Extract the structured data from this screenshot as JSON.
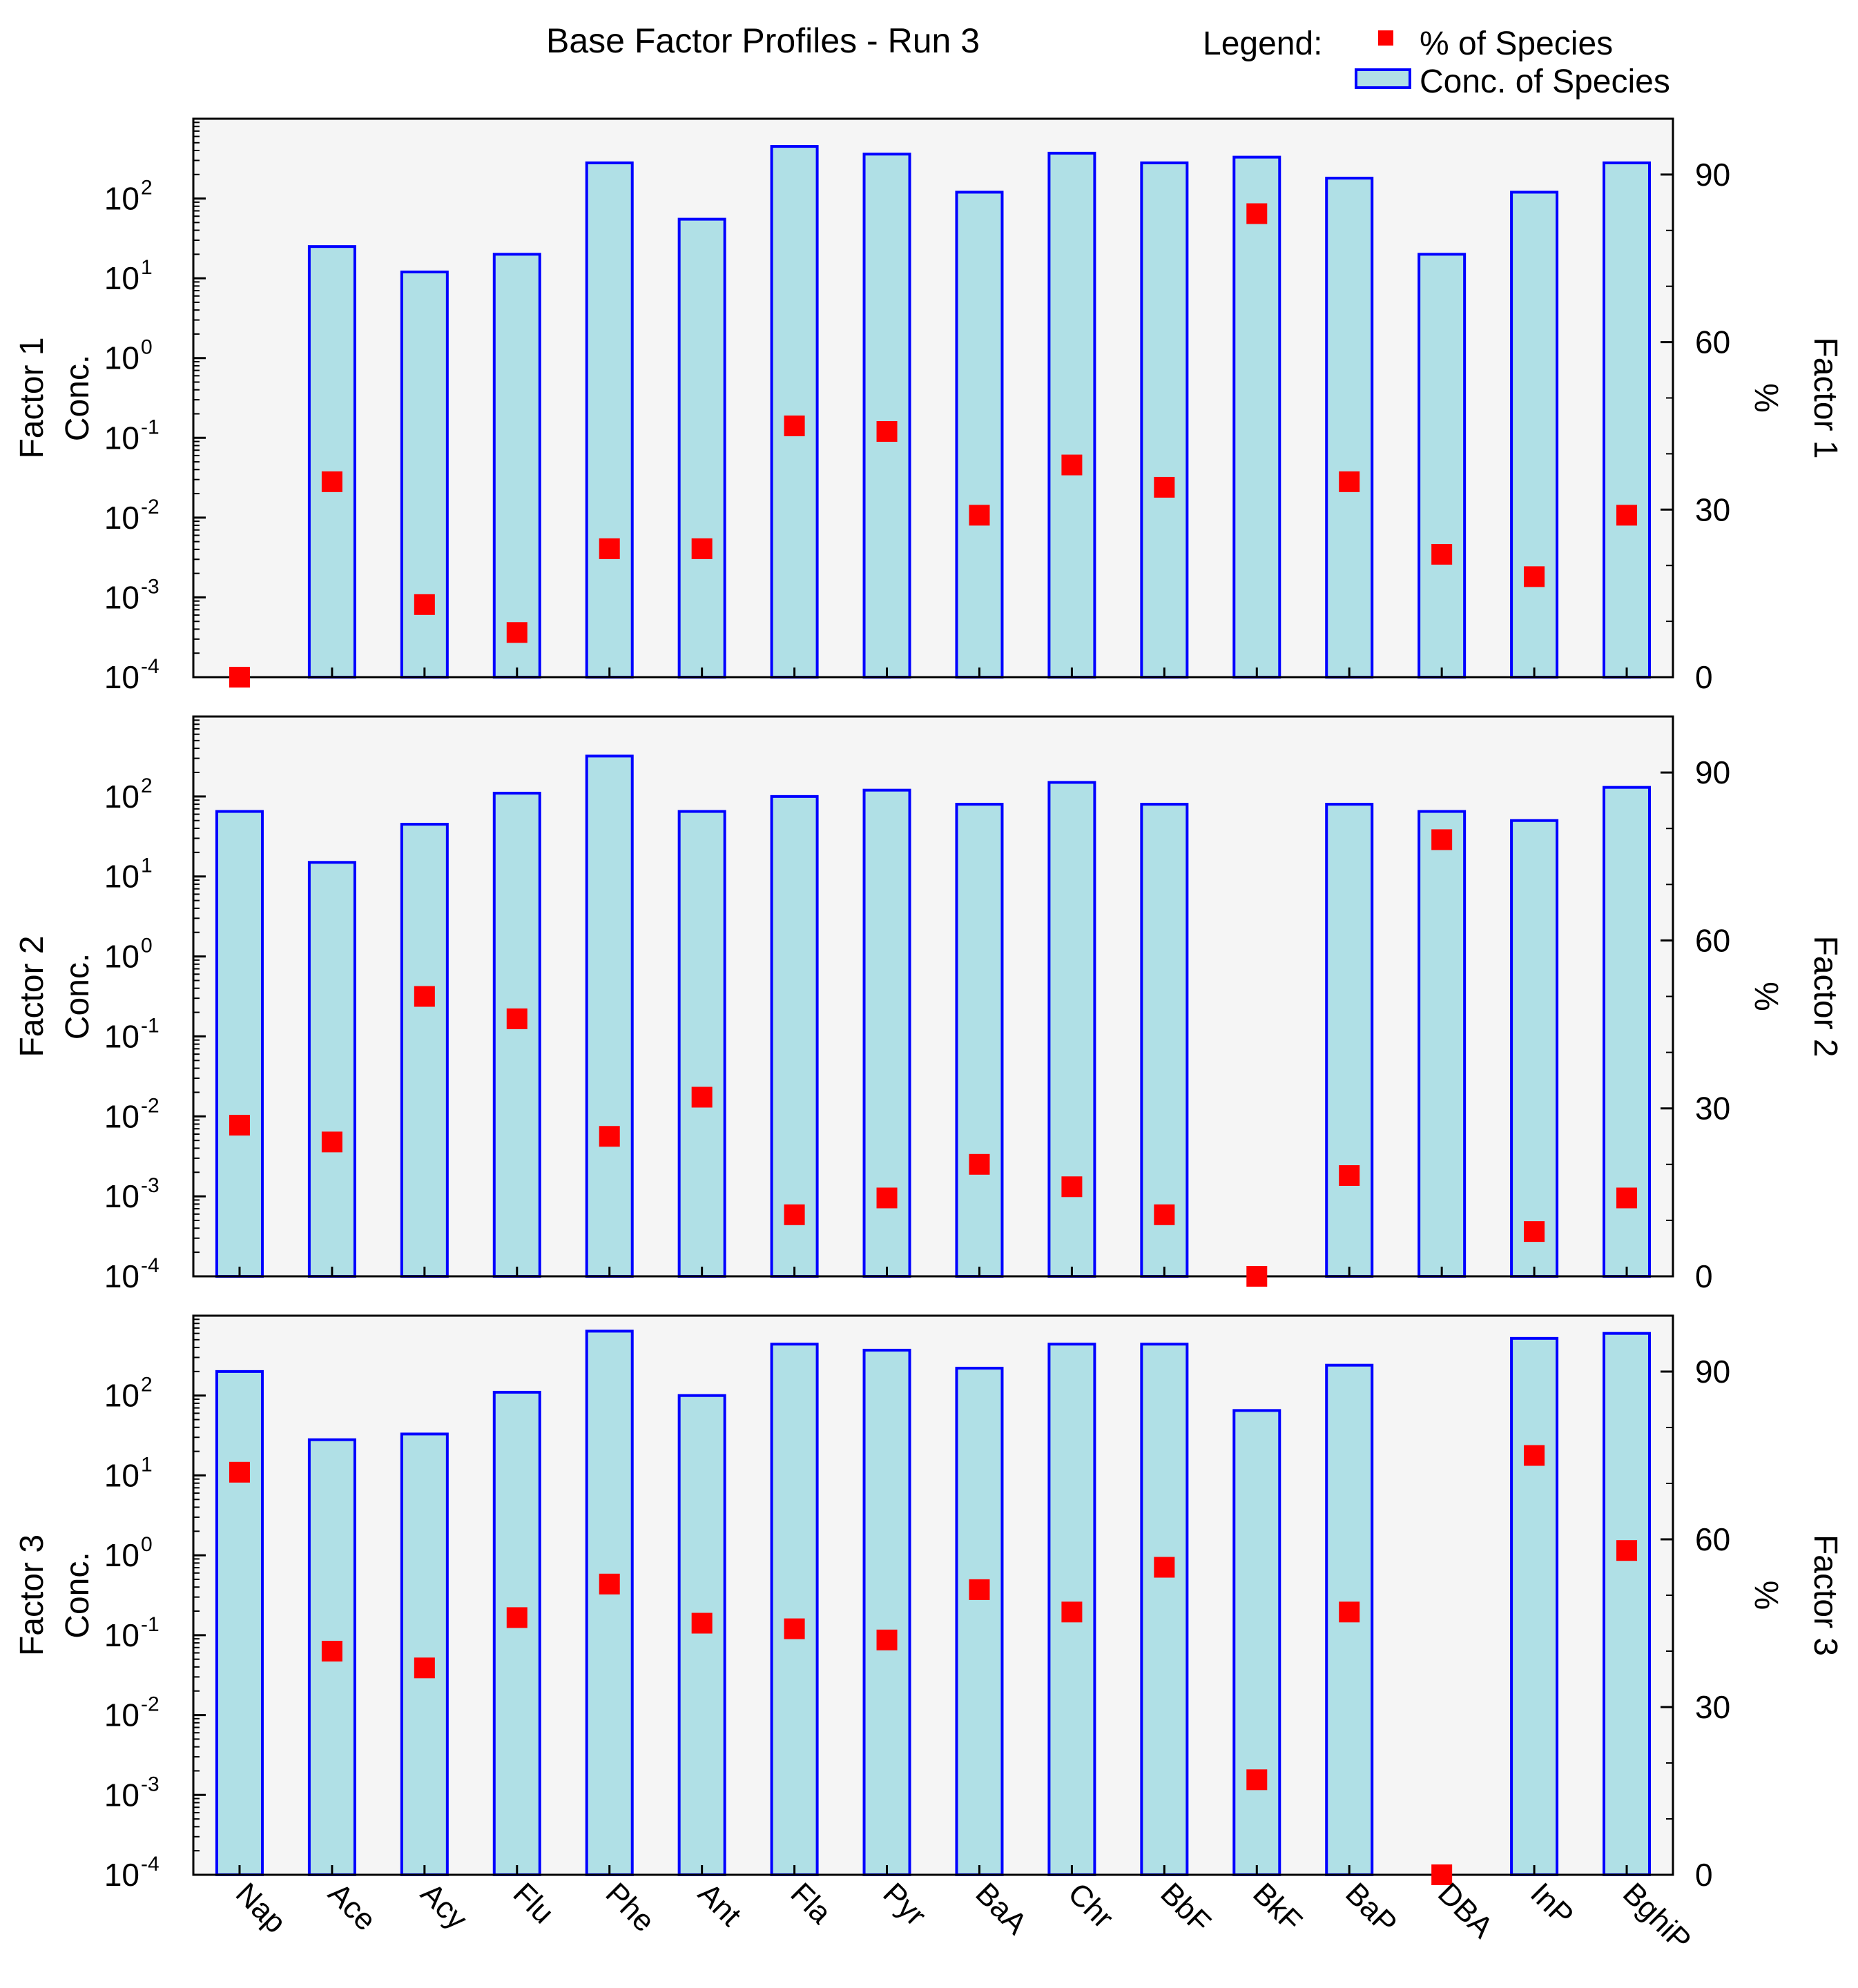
{
  "chart_data": {
    "type": "bar",
    "title": "Base Factor Profiles - Run 3",
    "legend": {
      "heading": "Legend:",
      "items": [
        {
          "label": "% of Species",
          "marker": "square",
          "color": "#FF0000"
        },
        {
          "label": "Conc. of Species",
          "marker": "bar",
          "fill": "#B0E0E6",
          "stroke": "#0000FF"
        }
      ],
      "placement": "top-right"
    },
    "categories": [
      "Nap",
      "Ace",
      "Acy",
      "Flu",
      "Phe",
      "Ant",
      "Fla",
      "Pyr",
      "BaA",
      "Chr",
      "BbF",
      "BkF",
      "BaP",
      "DBA",
      "InP",
      "BghiP"
    ],
    "left_axis": {
      "scale": "log",
      "ylim": [
        0.0001,
        1000
      ],
      "ticks": [
        {
          "base": "10",
          "exp": "2",
          "value": 100
        },
        {
          "base": "10",
          "exp": "1",
          "value": 10
        },
        {
          "base": "10",
          "exp": "0",
          "value": 1
        },
        {
          "base": "10",
          "exp": "-1",
          "value": 0.1
        },
        {
          "base": "10",
          "exp": "-2",
          "value": 0.01
        },
        {
          "base": "10",
          "exp": "-3",
          "value": 0.001
        },
        {
          "base": "10",
          "exp": "-4",
          "value": 0.0001
        }
      ]
    },
    "right_axis": {
      "scale": "linear",
      "ylim": [
        0,
        100
      ],
      "ticks": [
        "90",
        "60",
        "30",
        "0"
      ],
      "tick_values": [
        90,
        60,
        30,
        0
      ],
      "minor_step": 10
    },
    "panels": [
      {
        "name": "Factor 1",
        "ylabel_left": [
          "Factor 1",
          "Conc."
        ],
        "ylabel_right": [
          "Factor 1",
          "%"
        ],
        "conc": [
          null,
          25,
          12,
          20,
          280,
          55,
          450,
          360,
          120,
          370,
          280,
          330,
          180,
          20,
          120,
          280
        ],
        "percent": [
          0,
          35,
          13,
          8,
          23,
          23,
          45,
          44,
          29,
          38,
          34,
          83,
          35,
          22,
          18,
          29
        ]
      },
      {
        "name": "Factor 2",
        "ylabel_left": [
          "Factor 2",
          "Conc."
        ],
        "ylabel_right": [
          "Factor 2",
          "%"
        ],
        "conc": [
          65,
          15,
          45,
          110,
          320,
          65,
          100,
          120,
          80,
          150,
          80,
          null,
          80,
          65,
          50,
          130
        ],
        "percent": [
          27,
          24,
          50,
          46,
          25,
          32,
          11,
          14,
          20,
          16,
          11,
          0,
          18,
          78,
          8,
          14
        ]
      },
      {
        "name": "Factor 3",
        "ylabel_left": [
          "Factor 3",
          "Conc."
        ],
        "ylabel_right": [
          "Factor 3",
          "%"
        ],
        "conc": [
          200,
          28,
          33,
          110,
          640,
          100,
          440,
          370,
          220,
          440,
          440,
          65,
          240,
          null,
          520,
          600
        ],
        "percent": [
          72,
          40,
          37,
          46,
          52,
          45,
          44,
          42,
          51,
          47,
          55,
          17,
          47,
          0,
          75,
          58
        ]
      }
    ]
  }
}
